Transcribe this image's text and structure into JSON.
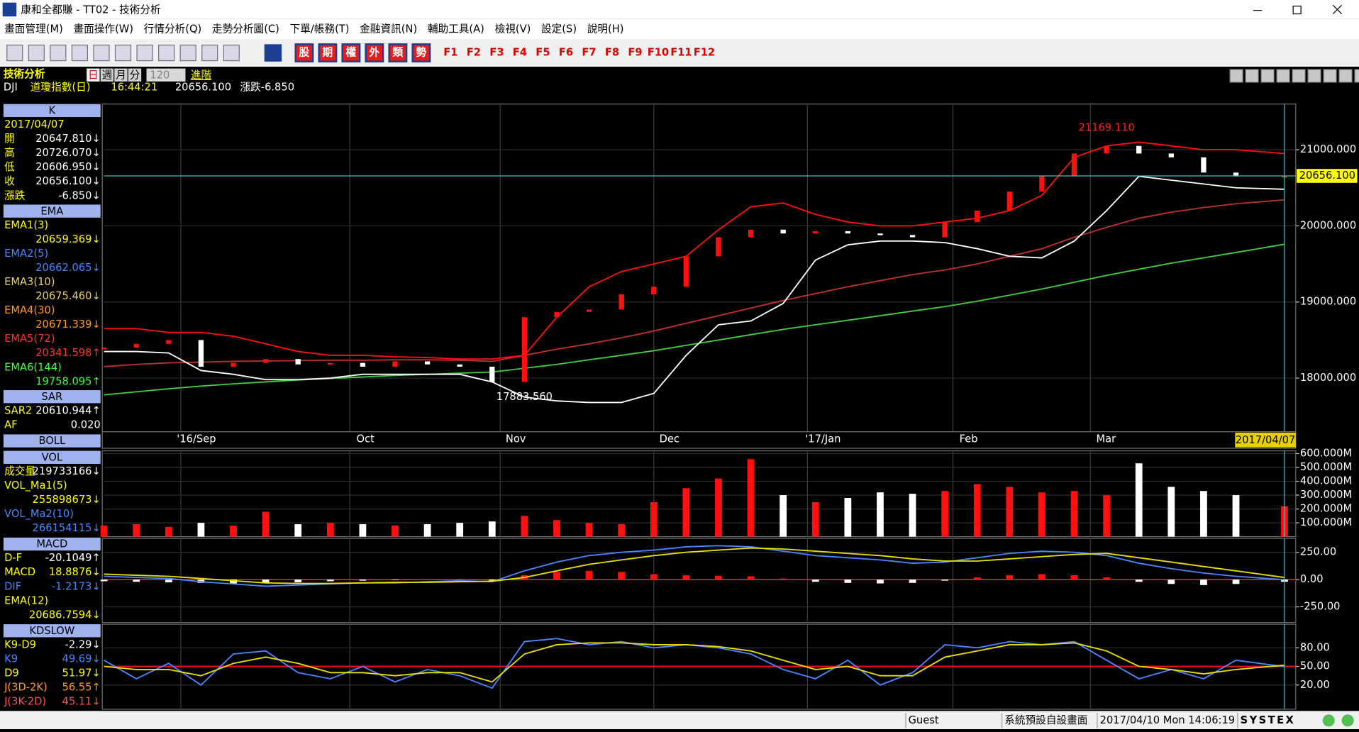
{
  "window": {
    "title": "康和全都賺 - TT02 - 技術分析"
  },
  "menu": [
    "畫面管理(M)",
    "畫面操作(W)",
    "行情分析(Q)",
    "走勢分析圖(C)",
    "下單/帳務(T)",
    "金融資訊(N)",
    "輔助工具(A)",
    "檢視(V)",
    "設定(S)",
    "說明(H)"
  ],
  "toolbar": {
    "markets": [
      "股",
      "期",
      "權",
      "外",
      "類",
      "勢"
    ],
    "function_keys": [
      "F1",
      "F2",
      "F3",
      "F4",
      "F5",
      "F6",
      "F7",
      "F8",
      "F9",
      "F10",
      "F11",
      "F12"
    ]
  },
  "header": {
    "title": "技術分析",
    "periods": [
      "日",
      "週",
      "月",
      "分"
    ],
    "count": "120",
    "advanced": "進階",
    "quote": [
      "DJI",
      "道瓊指數(日)",
      "16:44:21",
      "20656.100",
      "漲跌-6.850"
    ]
  },
  "sidebar": [
    {
      "title": "K",
      "rows": [
        {
          "label": "2017/04/07"
        },
        {
          "label": "開",
          "value": "20647.810↓"
        },
        {
          "label": "高",
          "value": "20726.070↓"
        },
        {
          "label": "低",
          "value": "20606.950↓"
        },
        {
          "label": "收",
          "value": "20656.100↓"
        },
        {
          "label": "漲跌",
          "value": "-6.850↓"
        }
      ]
    },
    {
      "title": "EMA",
      "rows": [
        {
          "label": "EMA1(3)",
          "color": "#ffff00"
        },
        {
          "value": "20659.369↓",
          "color": "#ffff00"
        },
        {
          "label": "EMA2(5)",
          "color": "#4a86ff"
        },
        {
          "value": "20662.065↓",
          "color": "#4a86ff"
        },
        {
          "label": "EMA3(10)",
          "color": "#e8d070"
        },
        {
          "value": "20675.460↓",
          "color": "#e8d070"
        },
        {
          "label": "EMA4(30)",
          "color": "#ff9a20"
        },
        {
          "value": "20671.339↓",
          "color": "#ff9a20"
        },
        {
          "label": "EMA5(72)",
          "color": "#ff3030"
        },
        {
          "value": "20341.598↑",
          "color": "#ff3030"
        },
        {
          "label": "EMA6(144)",
          "color": "#40ff40"
        },
        {
          "value": "19758.095↑",
          "color": "#40ff40"
        }
      ]
    },
    {
      "title": "SAR",
      "rows": [
        {
          "label": "SAR2",
          "value": "20610.944↑"
        },
        {
          "label": "AF",
          "value": "0.020"
        }
      ]
    },
    {
      "title": "BOLL",
      "rows": []
    },
    {
      "title": "VOL",
      "rows": [
        {
          "label": "成交量",
          "value": "219733166↓"
        },
        {
          "label": "VOL_Ma1(5)",
          "color": "#ffff00"
        },
        {
          "value": "255898673↓",
          "color": "#ffff00"
        },
        {
          "label": "VOL_Ma2(10)",
          "color": "#4a86ff"
        },
        {
          "value": "266154115↓",
          "color": "#4a86ff"
        }
      ]
    },
    {
      "title": "MACD",
      "rows": [
        {
          "label": "D-F",
          "value": "-20.1049↑"
        },
        {
          "label": "MACD",
          "value": "18.8876↓",
          "color": "#ffff00"
        },
        {
          "label": "DIF",
          "value": "-1.2173↓",
          "color": "#4a86ff"
        },
        {
          "label": "EMA(12)",
          "color": "#ffff00"
        },
        {
          "value": "20686.7594↓",
          "color": "#ffff00"
        }
      ]
    },
    {
      "title": "KDSLOW",
      "rows": [
        {
          "label": "K9-D9",
          "value": "-2.29↓"
        },
        {
          "label": "K9",
          "value": "49.69↓",
          "color": "#4a86ff"
        },
        {
          "label": "D9",
          "value": "51.97↓",
          "color": "#ffff00"
        },
        {
          "label": "J(3D-2K)",
          "value": "56.55↑",
          "color": "#ff9a20"
        },
        {
          "label": "J(3K-2D)",
          "value": "45.11↓",
          "color": "#ff5050"
        }
      ]
    }
  ],
  "chart_data": [
    {
      "type": "candlestick",
      "x": [
        0,
        4,
        8,
        12,
        16,
        20,
        24,
        28,
        32,
        36,
        40,
        44,
        48,
        52,
        56,
        60,
        64,
        68,
        72,
        76,
        80,
        84,
        88,
        92,
        96,
        100,
        104,
        108,
        112,
        116,
        120,
        124,
        128,
        132,
        136,
        140,
        146
      ],
      "xlim": [
        0,
        146
      ],
      "ylim": [
        17295,
        21600
      ],
      "xticks": [
        {
          "value": 9.5,
          "label": "'16/Sep"
        },
        {
          "value": 30.4,
          "label": "Oct"
        },
        {
          "value": 49,
          "label": "Nov"
        },
        {
          "value": 68,
          "label": "Dec"
        },
        {
          "value": 87,
          "label": "'17/Jan"
        },
        {
          "value": 105,
          "label": "Feb"
        },
        {
          "value": 122,
          "label": "Mar"
        }
      ],
      "yticks": [
        {
          "value": 18000,
          "label": "18000.000"
        },
        {
          "value": 19000,
          "label": "19000.000"
        },
        {
          "value": 20000,
          "label": "20000.000"
        },
        {
          "value": 21000,
          "label": "21000.000"
        }
      ],
      "series": [
        {
          "kind": "line",
          "color": "#40d040",
          "values": [
            17780,
            17820,
            17860,
            17895,
            17925,
            17950,
            17975,
            17995,
            18015,
            18035,
            18050,
            18065,
            18080,
            18130,
            18180,
            18240,
            18300,
            18360,
            18430,
            18500,
            18570,
            18640,
            18700,
            18760,
            18820,
            18880,
            18940,
            19010,
            19090,
            19170,
            19260,
            19350,
            19430,
            19510,
            19580,
            19650,
            19758
          ]
        },
        {
          "kind": "line",
          "color": "#c03030",
          "values": [
            18150,
            18180,
            18200,
            18210,
            18220,
            18225,
            18230,
            18235,
            18235,
            18240,
            18240,
            18235,
            18220,
            18300,
            18380,
            18450,
            18530,
            18620,
            18720,
            18820,
            18920,
            19020,
            19110,
            19200,
            19280,
            19360,
            19420,
            19500,
            19600,
            19700,
            19850,
            19980,
            20100,
            20180,
            20240,
            20290,
            20341
          ]
        },
        {
          "kind": "line",
          "color": "#ff1010",
          "values": [
            18650,
            18650,
            18600,
            18600,
            18550,
            18450,
            18350,
            18300,
            18300,
            18280,
            18270,
            18250,
            18250,
            18300,
            18800,
            19200,
            19400,
            19500,
            19600,
            19950,
            20250,
            20300,
            20150,
            20050,
            20000,
            20000,
            20050,
            20100,
            20200,
            20400,
            20900,
            21050,
            21100,
            21050,
            21000,
            21000,
            20950
          ]
        },
        {
          "kind": "line",
          "color": "#ffffff",
          "values": [
            18350,
            18350,
            18330,
            18100,
            18050,
            17980,
            17980,
            18000,
            18050,
            18050,
            18050,
            18050,
            17950,
            17750,
            17700,
            17680,
            17680,
            17800,
            18300,
            18700,
            18750,
            18980,
            19550,
            19750,
            19800,
            19800,
            19780,
            19700,
            19600,
            19580,
            19800,
            20200,
            20650,
            20600,
            20550,
            20500,
            20480
          ]
        },
        {
          "kind": "candle",
          "up_color": "#ff1010",
          "down_color": "#ffffff",
          "values": [
            18400,
            18450,
            18500,
            18150,
            18200,
            18250,
            18180,
            18200,
            18150,
            18220,
            18180,
            18150,
            17950,
            18800,
            18870,
            18900,
            19100,
            19200,
            19600,
            19850,
            19950,
            19900,
            19930,
            19900,
            19880,
            19850,
            20050,
            20200,
            20450,
            20650,
            20950,
            21050,
            20950,
            20900,
            20700,
            20650,
            20656
          ]
        }
      ],
      "annotations": [
        {
          "x": 124,
          "value": 21169.11,
          "label": "21169.110",
          "color": "#ff2020"
        },
        {
          "x": 52,
          "value": 17883.56,
          "label": "17883.560",
          "color": "#ffffff"
        }
      ],
      "last": {
        "value": 20656.1,
        "label": "20656.100"
      },
      "cursor": {
        "x": 146,
        "label": "2017/04/07"
      }
    },
    {
      "type": "bar",
      "x": [
        0,
        4,
        8,
        12,
        16,
        20,
        24,
        28,
        32,
        36,
        40,
        44,
        48,
        52,
        56,
        60,
        64,
        68,
        72,
        76,
        80,
        84,
        88,
        92,
        96,
        100,
        104,
        108,
        112,
        116,
        120,
        124,
        128,
        132,
        136,
        140,
        146
      ],
      "xlim": [
        0,
        146
      ],
      "ylim": [
        0,
        620000000
      ],
      "yticks": [
        {
          "value": 100000000,
          "label": "100.000M"
        },
        {
          "value": 200000000,
          "label": "200.000M"
        },
        {
          "value": 300000000,
          "label": "300.000M"
        },
        {
          "value": 400000000,
          "label": "400.000M"
        },
        {
          "value": 500000000,
          "label": "500.000M"
        },
        {
          "value": 600000000,
          "label": "600.000M"
        }
      ],
      "series": [
        {
          "kind": "bar",
          "color": "#ff1010",
          "down_color": "#ffffff",
          "values": [
            80000000,
            90000000,
            70000000,
            100000000,
            80000000,
            180000000,
            90000000,
            100000000,
            90000000,
            80000000,
            90000000,
            100000000,
            110000000,
            150000000,
            120000000,
            100000000,
            90000000,
            250000000,
            350000000,
            420000000,
            560000000,
            300000000,
            250000000,
            280000000,
            320000000,
            310000000,
            330000000,
            380000000,
            360000000,
            320000000,
            330000000,
            300000000,
            530000000,
            360000000,
            330000000,
            300000000,
            219733166
          ]
        }
      ]
    },
    {
      "type": "bar",
      "x": [
        0,
        4,
        8,
        12,
        16,
        20,
        24,
        28,
        32,
        36,
        40,
        44,
        48,
        52,
        56,
        60,
        64,
        68,
        72,
        76,
        80,
        84,
        88,
        92,
        96,
        100,
        104,
        108,
        112,
        116,
        120,
        124,
        128,
        132,
        136,
        140,
        146
      ],
      "xlim": [
        0,
        146
      ],
      "ylim": [
        -393,
        377
      ],
      "baseline": 0,
      "yticks": [
        {
          "value": -250,
          "label": "-250.00"
        },
        {
          "value": 0,
          "label": "0.00"
        },
        {
          "value": 250,
          "label": "250.00"
        }
      ],
      "series": [
        {
          "kind": "bar",
          "color": "#ff1010",
          "negative_color": "#ffffff",
          "values": [
            -15,
            -20,
            -25,
            -30,
            -35,
            -30,
            -25,
            -15,
            -10,
            -5,
            5,
            8,
            -10,
            40,
            70,
            80,
            70,
            50,
            40,
            35,
            30,
            10,
            -20,
            -30,
            -35,
            -30,
            -10,
            20,
            40,
            50,
            40,
            20,
            -20,
            -40,
            -50,
            -40,
            -20.1049
          ]
        },
        {
          "kind": "line",
          "color": "#4a86ff",
          "values": [
            30,
            20,
            10,
            -20,
            -40,
            -60,
            -50,
            -40,
            -30,
            -30,
            -20,
            -10,
            -20,
            80,
            160,
            220,
            250,
            270,
            300,
            310,
            300,
            260,
            220,
            200,
            180,
            150,
            160,
            200,
            240,
            260,
            250,
            220,
            150,
            100,
            60,
            30,
            -1.2173
          ]
        },
        {
          "kind": "line",
          "color": "#e8e000",
          "values": [
            50,
            40,
            30,
            10,
            -10,
            -30,
            -35,
            -35,
            -30,
            -25,
            -25,
            -20,
            -15,
            20,
            80,
            140,
            180,
            220,
            250,
            270,
            290,
            280,
            260,
            240,
            220,
            190,
            170,
            170,
            190,
            210,
            230,
            240,
            200,
            160,
            120,
            80,
            18.8876
          ]
        }
      ]
    },
    {
      "type": "line",
      "x": [
        0,
        4,
        8,
        12,
        16,
        20,
        24,
        28,
        32,
        36,
        40,
        44,
        48,
        52,
        56,
        60,
        64,
        68,
        72,
        76,
        80,
        84,
        88,
        92,
        96,
        100,
        104,
        108,
        112,
        116,
        120,
        124,
        128,
        132,
        136,
        140,
        146
      ],
      "xlim": [
        0,
        146
      ],
      "ylim": [
        -19,
        118
      ],
      "baseline": 50,
      "yticks": [
        {
          "value": 20,
          "label": "20.00"
        },
        {
          "value": 50,
          "label": "50.00"
        },
        {
          "value": 80,
          "label": "80.00"
        }
      ],
      "series": [
        {
          "kind": "line",
          "color": "#4a86ff",
          "values": [
            60,
            30,
            55,
            20,
            70,
            75,
            40,
            30,
            50,
            25,
            45,
            35,
            15,
            90,
            95,
            85,
            90,
            80,
            85,
            80,
            70,
            45,
            30,
            60,
            20,
            40,
            85,
            80,
            90,
            85,
            90,
            60,
            30,
            45,
            30,
            60,
            49.69
          ]
        },
        {
          "kind": "line",
          "color": "#e8e000",
          "values": [
            50,
            45,
            45,
            35,
            55,
            65,
            55,
            40,
            40,
            35,
            40,
            40,
            25,
            70,
            85,
            88,
            88,
            85,
            85,
            82,
            75,
            60,
            45,
            50,
            35,
            35,
            65,
            75,
            85,
            85,
            88,
            75,
            50,
            45,
            38,
            45,
            51.97
          ]
        }
      ]
    }
  ],
  "status": [
    "Guest",
    "系統預設自設畫面",
    "2017/04/10 Mon 14:06:19",
    "SYSTEX"
  ]
}
